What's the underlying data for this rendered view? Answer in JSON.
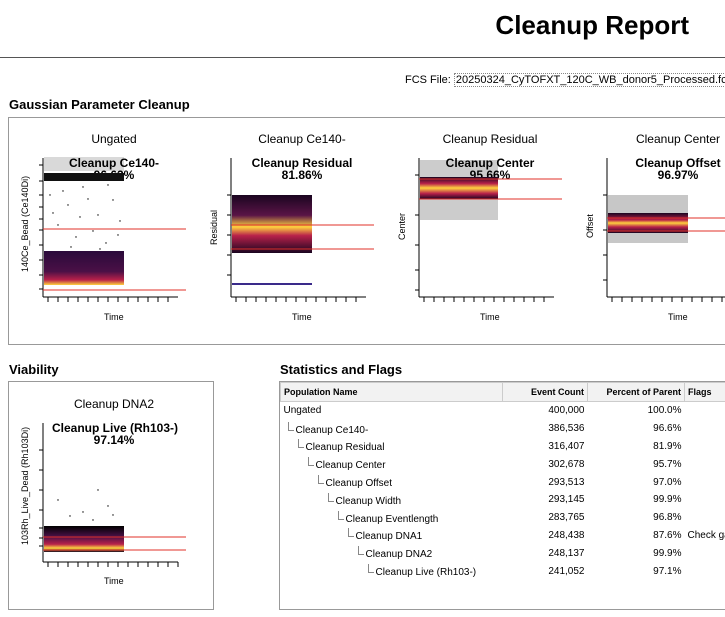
{
  "header": {
    "title": "Cleanup Report"
  },
  "fcs": {
    "label": "FCS File:",
    "filename": "20250324_CyTOFXT_120C_WB_donor5_Processed.fcs"
  },
  "sections": {
    "gaussian": "Gaussian Parameter Cleanup",
    "viability": "Viability",
    "stats": "Statistics and Flags"
  },
  "plots": [
    {
      "title": "Ungated",
      "gate": "Cleanup Ce140-",
      "pct": "96.63%",
      "ylabel": "140Ce_Bead (Ce140Di)",
      "xlabel": "Time"
    },
    {
      "title": "Cleanup Ce140-",
      "gate": "Cleanup Residual",
      "pct": "81.86%",
      "ylabel": "Residual",
      "xlabel": "Time"
    },
    {
      "title": "Cleanup Residual",
      "gate": "Cleanup Center",
      "pct": "95.66%",
      "ylabel": "Center",
      "xlabel": "Time"
    },
    {
      "title": "Cleanup Center",
      "gate": "Cleanup Offset",
      "pct": "96.97%",
      "ylabel": "Offset",
      "xlabel": "Time"
    }
  ],
  "viability_plot": {
    "title": "Cleanup DNA2",
    "gate": "Cleanup Live (Rh103-)",
    "pct": "97.14%",
    "ylabel": "103Rh_Live_Dead (Rh103Di)",
    "xlabel": "Time"
  },
  "table": {
    "headers": [
      "Population Name",
      "Event Count",
      "Percent of Parent",
      "Flags"
    ],
    "rows": [
      {
        "name": "Ungated",
        "count": "400,000",
        "pct": "100.0%",
        "flag": "",
        "depth": 0
      },
      {
        "name": "Cleanup Ce140-",
        "count": "386,536",
        "pct": "96.6%",
        "flag": "",
        "depth": 1
      },
      {
        "name": "Cleanup Residual",
        "count": "316,407",
        "pct": "81.9%",
        "flag": "",
        "depth": 2
      },
      {
        "name": "Cleanup Center",
        "count": "302,678",
        "pct": "95.7%",
        "flag": "",
        "depth": 3
      },
      {
        "name": "Cleanup Offset",
        "count": "293,513",
        "pct": "97.0%",
        "flag": "",
        "depth": 4
      },
      {
        "name": "Cleanup Width",
        "count": "293,145",
        "pct": "99.9%",
        "flag": "",
        "depth": 5
      },
      {
        "name": "Cleanup Eventlength",
        "count": "283,765",
        "pct": "96.8%",
        "flag": "",
        "depth": 6
      },
      {
        "name": "Cleanup DNA1",
        "count": "248,438",
        "pct": "87.6%",
        "flag": "Check gate",
        "depth": 7
      },
      {
        "name": "Cleanup DNA2",
        "count": "248,137",
        "pct": "99.9%",
        "flag": "",
        "depth": 8
      },
      {
        "name": "Cleanup Live (Rh103-)",
        "count": "241,052",
        "pct": "97.1%",
        "flag": "",
        "depth": 9
      }
    ]
  },
  "colors": {
    "gate_line": "#e0302a",
    "heat_low": "#2a0a3a",
    "heat_mid": "#b8214a",
    "heat_high": "#ffd23f"
  }
}
